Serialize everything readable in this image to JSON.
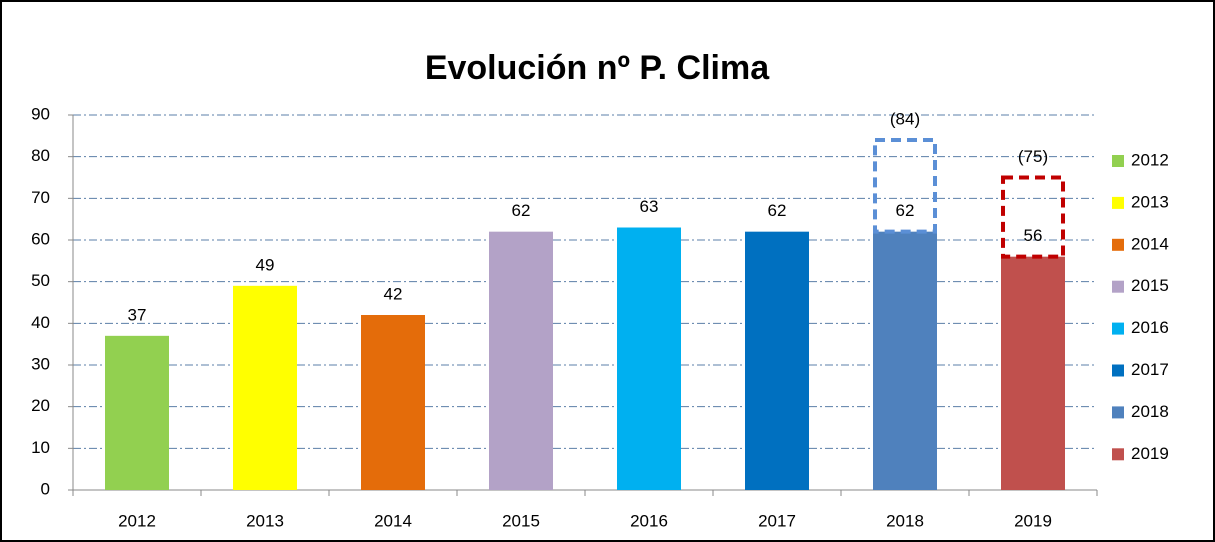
{
  "chart_data": {
    "type": "bar",
    "title": "Evolución nº P. Clima",
    "categories": [
      "2012",
      "2013",
      "2014",
      "2015",
      "2016",
      "2017",
      "2018",
      "2019"
    ],
    "values": [
      37,
      49,
      42,
      62,
      63,
      62,
      62,
      56
    ],
    "colors": [
      "#92d050",
      "#ffff00",
      "#e46c0a",
      "#b3a2c7",
      "#00b0f0",
      "#0070c0",
      "#4f81bd",
      "#c0504d"
    ],
    "projections": {
      "values": [
        null,
        null,
        null,
        null,
        null,
        null,
        84,
        75
      ],
      "value_labels": [
        null,
        null,
        null,
        null,
        null,
        null,
        "(84)",
        "(75)"
      ],
      "colors": [
        null,
        null,
        null,
        null,
        null,
        null,
        "#5b8fd6",
        "#c00000"
      ]
    },
    "ylim": [
      0,
      90
    ],
    "yticks": [
      0,
      10,
      20,
      30,
      40,
      50,
      60,
      70,
      80,
      90
    ],
    "grid": true,
    "legend": "right"
  }
}
